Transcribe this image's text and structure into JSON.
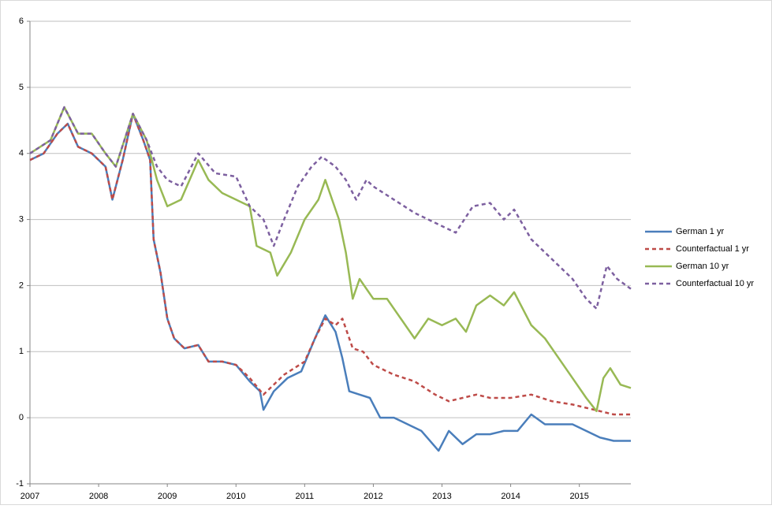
{
  "chart_data": {
    "type": "line",
    "xlim": [
      2007,
      2015.75
    ],
    "xticks": [
      2007,
      2008,
      2009,
      2010,
      2011,
      2012,
      2013,
      2014,
      2015
    ],
    "ylim": [
      -1,
      6
    ],
    "yticks": [
      -1,
      0,
      1,
      2,
      3,
      4,
      5,
      6
    ],
    "grid": true,
    "legend": "right",
    "series": [
      {
        "name": "German 1 yr",
        "color": "#4a7ebb",
        "dash": false,
        "x": [
          2007.0,
          2007.2,
          2007.4,
          2007.55,
          2007.7,
          2007.9,
          2008.1,
          2008.2,
          2008.35,
          2008.5,
          2008.65,
          2008.75,
          2008.8,
          2008.9,
          2009.0,
          2009.1,
          2009.25,
          2009.45,
          2009.6,
          2009.8,
          2010.0,
          2010.2,
          2010.35,
          2010.4,
          2010.55,
          2010.75,
          2010.95,
          2011.15,
          2011.3,
          2011.45,
          2011.55,
          2011.65,
          2011.8,
          2011.95,
          2012.1,
          2012.3,
          2012.5,
          2012.7,
          2012.95,
          2013.1,
          2013.3,
          2013.5,
          2013.7,
          2013.9,
          2014.1,
          2014.3,
          2014.5,
          2014.7,
          2014.9,
          2015.1,
          2015.3,
          2015.5,
          2015.75
        ],
        "values": [
          3.9,
          4.0,
          4.3,
          4.45,
          4.1,
          4.0,
          3.8,
          3.3,
          3.9,
          4.6,
          4.2,
          3.9,
          2.7,
          2.2,
          1.5,
          1.2,
          1.05,
          1.1,
          0.85,
          0.85,
          0.8,
          0.55,
          0.4,
          0.12,
          0.4,
          0.6,
          0.7,
          1.2,
          1.55,
          1.3,
          0.9,
          0.4,
          0.35,
          0.3,
          0.0,
          0.0,
          -0.1,
          -0.2,
          -0.5,
          -0.2,
          -0.4,
          -0.25,
          -0.25,
          -0.2,
          -0.2,
          0.05,
          -0.1,
          -0.1,
          -0.1,
          -0.2,
          -0.3,
          -0.35,
          -0.35
        ]
      },
      {
        "name": "Counterfactual 1 yr",
        "color": "#be4b48",
        "dash": true,
        "x": [
          2007.0,
          2007.2,
          2007.4,
          2007.55,
          2007.7,
          2007.9,
          2008.1,
          2008.2,
          2008.35,
          2008.5,
          2008.65,
          2008.75,
          2008.8,
          2008.9,
          2009.0,
          2009.1,
          2009.25,
          2009.45,
          2009.6,
          2009.8,
          2010.0,
          2010.2,
          2010.4,
          2010.7,
          2011.0,
          2011.15,
          2011.3,
          2011.45,
          2011.55,
          2011.7,
          2011.85,
          2012.0,
          2012.3,
          2012.6,
          2012.9,
          2013.1,
          2013.3,
          2013.5,
          2013.7,
          2014.0,
          2014.3,
          2014.6,
          2014.9,
          2015.1,
          2015.3,
          2015.5,
          2015.75
        ],
        "values": [
          3.9,
          4.0,
          4.3,
          4.45,
          4.1,
          4.0,
          3.8,
          3.3,
          3.9,
          4.6,
          4.2,
          3.9,
          2.7,
          2.2,
          1.5,
          1.2,
          1.05,
          1.1,
          0.85,
          0.85,
          0.8,
          0.6,
          0.35,
          0.65,
          0.85,
          1.2,
          1.5,
          1.4,
          1.5,
          1.05,
          1.0,
          0.8,
          0.65,
          0.55,
          0.35,
          0.25,
          0.3,
          0.35,
          0.3,
          0.3,
          0.35,
          0.25,
          0.2,
          0.15,
          0.1,
          0.05,
          0.05
        ]
      },
      {
        "name": "German 10 yr",
        "color": "#98b954",
        "dash": false,
        "x": [
          2007.0,
          2007.3,
          2007.5,
          2007.7,
          2007.9,
          2008.1,
          2008.25,
          2008.5,
          2008.7,
          2008.85,
          2009.0,
          2009.2,
          2009.45,
          2009.6,
          2009.8,
          2010.0,
          2010.2,
          2010.3,
          2010.5,
          2010.6,
          2010.8,
          2011.0,
          2011.2,
          2011.3,
          2011.5,
          2011.6,
          2011.7,
          2011.8,
          2012.0,
          2012.2,
          2012.4,
          2012.6,
          2012.8,
          2013.0,
          2013.2,
          2013.35,
          2013.5,
          2013.7,
          2013.9,
          2014.05,
          2014.3,
          2014.5,
          2014.7,
          2014.9,
          2015.1,
          2015.25,
          2015.35,
          2015.45,
          2015.6,
          2015.75
        ],
        "values": [
          4.0,
          4.2,
          4.7,
          4.3,
          4.3,
          4.0,
          3.8,
          4.6,
          4.2,
          3.6,
          3.2,
          3.3,
          3.9,
          3.6,
          3.4,
          3.3,
          3.2,
          2.6,
          2.5,
          2.15,
          2.5,
          3.0,
          3.3,
          3.6,
          3.0,
          2.5,
          1.8,
          2.1,
          1.8,
          1.8,
          1.5,
          1.2,
          1.5,
          1.4,
          1.5,
          1.3,
          1.7,
          1.85,
          1.7,
          1.9,
          1.4,
          1.2,
          0.9,
          0.6,
          0.3,
          0.1,
          0.6,
          0.75,
          0.5,
          0.45
        ]
      },
      {
        "name": "Counterfactual 10 yr",
        "color": "#7d60a0",
        "dash": true,
        "x": [
          2007.0,
          2007.3,
          2007.5,
          2007.7,
          2007.9,
          2008.1,
          2008.25,
          2008.5,
          2008.7,
          2008.85,
          2009.0,
          2009.2,
          2009.45,
          2009.7,
          2010.0,
          2010.2,
          2010.4,
          2010.55,
          2010.7,
          2010.9,
          2011.1,
          2011.25,
          2011.45,
          2011.6,
          2011.75,
          2011.9,
          2012.0,
          2012.3,
          2012.6,
          2012.9,
          2013.2,
          2013.45,
          2013.7,
          2013.9,
          2014.05,
          2014.3,
          2014.6,
          2014.9,
          2015.1,
          2015.25,
          2015.4,
          2015.55,
          2015.75
        ],
        "values": [
          4.0,
          4.2,
          4.7,
          4.3,
          4.3,
          4.0,
          3.8,
          4.6,
          4.2,
          3.8,
          3.6,
          3.5,
          4.0,
          3.7,
          3.65,
          3.2,
          3.0,
          2.6,
          3.0,
          3.5,
          3.8,
          3.95,
          3.8,
          3.6,
          3.3,
          3.6,
          3.5,
          3.3,
          3.1,
          2.95,
          2.8,
          3.2,
          3.25,
          3.0,
          3.15,
          2.7,
          2.4,
          2.1,
          1.8,
          1.65,
          2.3,
          2.1,
          1.95
        ]
      }
    ]
  }
}
